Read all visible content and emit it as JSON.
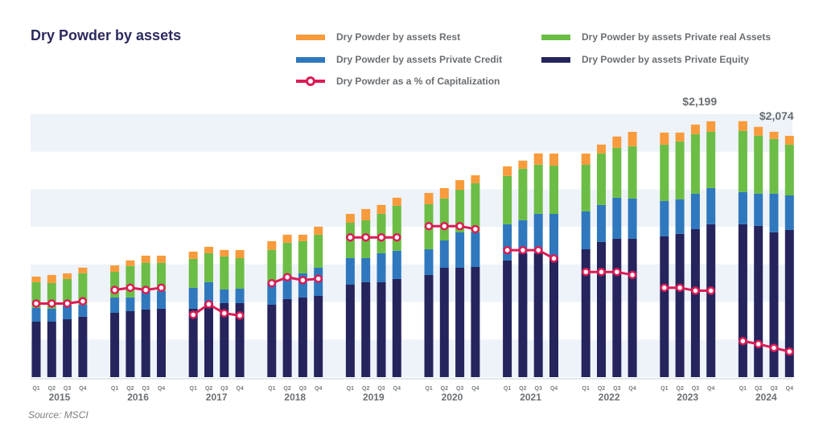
{
  "chart_data": {
    "type": "bar",
    "stacked": true,
    "title": "Dry Powder by assets",
    "source": "Source: MSCI",
    "xlabel": "",
    "ylabel": "",
    "grid": "alternating horizontal bands",
    "legend_position": "top-right",
    "years": [
      "2015",
      "2016",
      "2017",
      "2018",
      "2019",
      "2020",
      "2021",
      "2022",
      "2023",
      "2024"
    ],
    "quarters": [
      "Q1",
      "Q2",
      "Q3",
      "Q4"
    ],
    "ylim": [
      0,
      2260
    ],
    "units": "USD billions",
    "series": [
      {
        "key": "pe",
        "name": "Dry Powder by assets Private Equity",
        "color": "#26245c",
        "values": [
          477,
          477,
          498,
          519,
          553,
          567,
          581,
          588,
          588,
          636,
          636,
          636,
          622,
          671,
          685,
          698,
          795,
          816,
          816,
          844,
          878,
          940,
          940,
          947,
          1003,
          1065,
          1065,
          1030,
          1099,
          1162,
          1189,
          1189,
          1210,
          1231,
          1272,
          1314,
          1314,
          1300,
          1245,
          1265
        ]
      },
      {
        "key": "pc",
        "name": "Dry Powder by assets Private Credit",
        "color": "#2f78be",
        "values": [
          118,
          111,
          118,
          104,
          131,
          118,
          159,
          152,
          180,
          180,
          118,
          124,
          194,
          207,
          207,
          242,
          228,
          207,
          249,
          242,
          221,
          235,
          304,
          297,
          311,
          284,
          339,
          373,
          325,
          318,
          353,
          346,
          304,
          297,
          304,
          311,
          277,
          277,
          332,
          297
        ]
      },
      {
        "key": "ra",
        "name": "Dry Powder by assets Private real Assets",
        "color": "#6cbd45",
        "values": [
          221,
          221,
          228,
          270,
          221,
          270,
          242,
          242,
          249,
          249,
          284,
          263,
          277,
          277,
          277,
          284,
          304,
          325,
          339,
          387,
          387,
          360,
          366,
          422,
          415,
          443,
          422,
          415,
          401,
          443,
          429,
          449,
          484,
          498,
          512,
          484,
          526,
          498,
          470,
          436
        ]
      },
      {
        "key": "rest",
        "name": "Dry Powder by assets Rest",
        "color": "#f89b3c",
        "values": [
          48,
          69,
          48,
          48,
          55,
          48,
          62,
          62,
          62,
          55,
          55,
          69,
          76,
          69,
          55,
          69,
          76,
          97,
          76,
          69,
          97,
          90,
          83,
          69,
          83,
          69,
          97,
          104,
          97,
          76,
          97,
          124,
          104,
          76,
          83,
          90,
          83,
          76,
          62,
          76
        ]
      }
    ],
    "line_series": {
      "name": "Dry Powder as a % of Capitalization",
      "color": "#dc1c55",
      "units": "percent (estimated, no axis shown)",
      "ylim": [
        0,
        35
      ],
      "values": [
        9.8,
        9.8,
        9.8,
        10.1,
        11.6,
        11.9,
        11.6,
        11.9,
        8.3,
        9.7,
        8.5,
        8.2,
        12.5,
        13.3,
        12.9,
        13.1,
        18.6,
        18.6,
        18.6,
        18.6,
        20.1,
        20.1,
        20.1,
        19.7,
        16.9,
        16.9,
        16.9,
        15.8,
        14.0,
        14.0,
        14.0,
        13.6,
        11.9,
        11.9,
        11.5,
        11.5,
        4.8,
        4.4,
        3.9,
        3.4
      ]
    },
    "annotations": [
      {
        "text": "$2,199",
        "year": "2023",
        "quarter": "Q4"
      },
      {
        "text": "$2,074",
        "year": "2024",
        "quarter": "Q4"
      }
    ]
  },
  "legend": [
    {
      "key": "rest",
      "label": "Dry Powder by assets Rest",
      "color": "#f89b3c"
    },
    {
      "key": "ra",
      "label": "Dry Powder by assets Private real Assets",
      "color": "#6cbd45"
    },
    {
      "key": "pc",
      "label": "Dry Powder by assets Private Credit",
      "color": "#2f78be"
    },
    {
      "key": "pe",
      "label": "Dry Powder by assets Private Equity",
      "color": "#26245c"
    },
    {
      "key": "pct",
      "label": "Dry Powder as a % of Capitalization",
      "color": "#dc1c55"
    }
  ]
}
